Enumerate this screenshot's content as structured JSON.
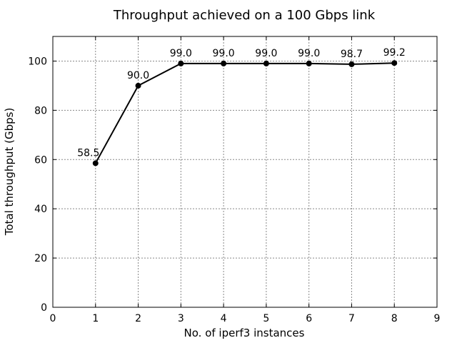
{
  "chart_data": {
    "type": "line",
    "title": "Throughput achieved on a 100 Gbps link",
    "xlabel": "No. of iperf3 instances",
    "ylabel": "Total throughput (Gbps)",
    "xlim": [
      0,
      9
    ],
    "ylim": [
      0,
      110
    ],
    "xticks": [
      0,
      1,
      2,
      3,
      4,
      5,
      6,
      7,
      8,
      9
    ],
    "yticks": [
      0,
      20,
      40,
      60,
      80,
      100
    ],
    "grid": true,
    "series": [
      {
        "x": [
          1,
          2,
          3,
          4,
          5,
          6,
          7,
          8
        ],
        "y": [
          58.5,
          90.0,
          99.0,
          99.0,
          99.0,
          99.0,
          98.7,
          99.2
        ],
        "labels": [
          "58.5",
          "90.0",
          "99.0",
          "99.0",
          "99.0",
          "99.0",
          "98.7",
          "99.2"
        ],
        "color": "#000000"
      }
    ]
  }
}
